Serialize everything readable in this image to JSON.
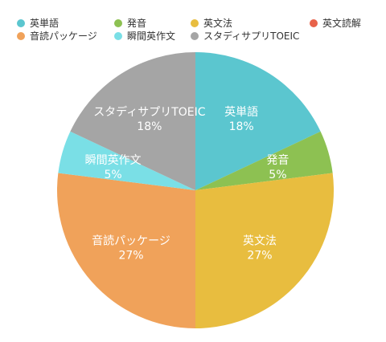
{
  "chart_data": {
    "type": "pie",
    "legend_position": "top",
    "slices": [
      {
        "label": "英単語",
        "value": 18,
        "value_label": "18%",
        "color": "#5BC6CF"
      },
      {
        "label": "発音",
        "value": 5,
        "value_label": "5%",
        "color": "#8DC152"
      },
      {
        "label": "英文法",
        "value": 27,
        "value_label": "27%",
        "color": "#E8BD3F"
      },
      {
        "label": "英文読解",
        "value": 0,
        "value_label": "",
        "color": "#E8624A"
      },
      {
        "label": "音読パッケージ",
        "value": 27,
        "value_label": "27%",
        "color": "#F0A25A"
      },
      {
        "label": "瞬間英作文",
        "value": 5,
        "value_label": "5%",
        "color": "#7ADFE6"
      },
      {
        "label": "スタディサプリTOEIC",
        "value": 18,
        "value_label": "18%",
        "color": "#A5A5A5"
      }
    ]
  }
}
